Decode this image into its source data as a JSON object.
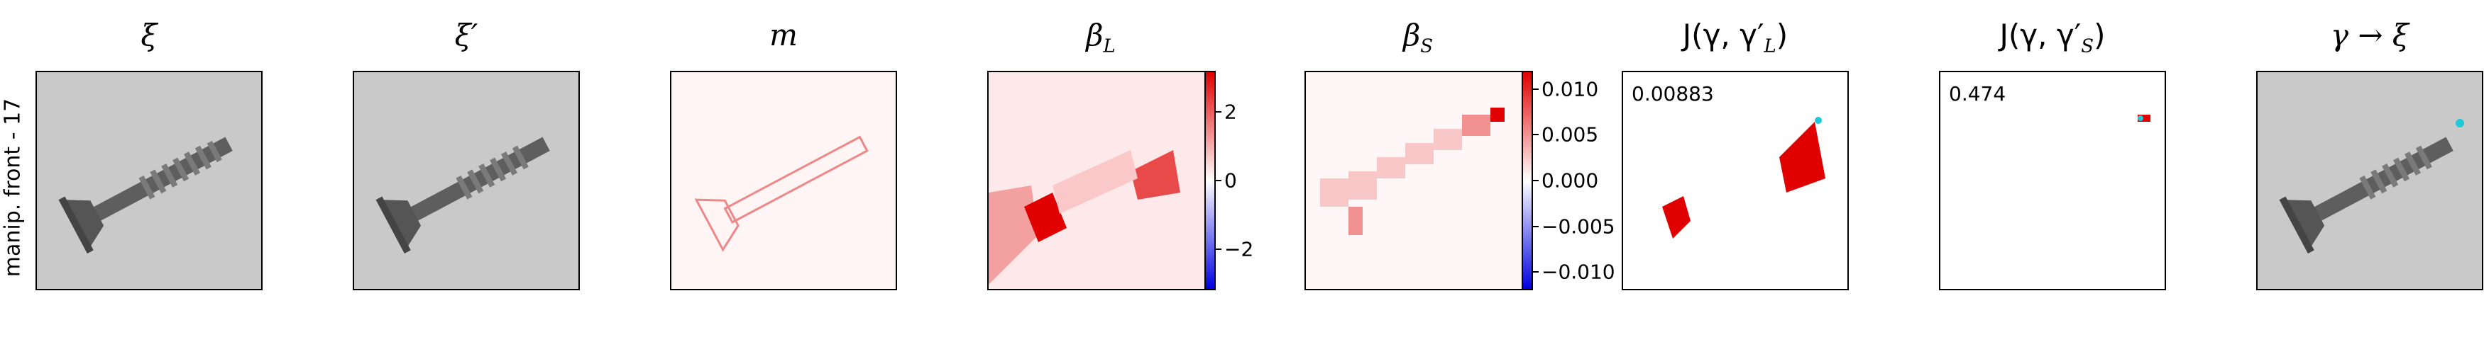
{
  "row_label": "manip. front - 17",
  "panels": [
    {
      "id": "xi",
      "title": "ξ"
    },
    {
      "id": "xi_prime",
      "title": "ξ′"
    },
    {
      "id": "m",
      "title": "m"
    },
    {
      "id": "beta_l",
      "title_base": "β",
      "title_sub": "L"
    },
    {
      "id": "beta_s",
      "title_base": "β",
      "title_sub": "S"
    },
    {
      "id": "j_l",
      "title": "J(γ, γ′",
      "title_sub": "L",
      "title_end": ")",
      "value": "0.00883"
    },
    {
      "id": "j_s",
      "title": "J(γ, γ′",
      "title_sub": "S",
      "title_end": ")",
      "value": "0.474"
    },
    {
      "id": "gamma_xi",
      "title": "γ → ξ"
    }
  ],
  "colorbars": {
    "beta_l": {
      "ticks": [
        "2",
        "0",
        "−2"
      ],
      "tick_values": [
        2,
        0,
        -2
      ],
      "range": [
        -3.2,
        3.2
      ]
    },
    "beta_s": {
      "ticks": [
        "0.010",
        "0.005",
        "0.000",
        "−0.005",
        "−0.010"
      ],
      "tick_values": [
        0.01,
        0.005,
        0,
        -0.005,
        -0.01
      ],
      "range": [
        -0.012,
        0.012
      ]
    }
  },
  "colors": {
    "red": "#e00000",
    "blue": "#0000e0",
    "cyan": "#20c8d8",
    "gray_bg": "#c8c8c8",
    "metal": "#6a6a6a"
  }
}
